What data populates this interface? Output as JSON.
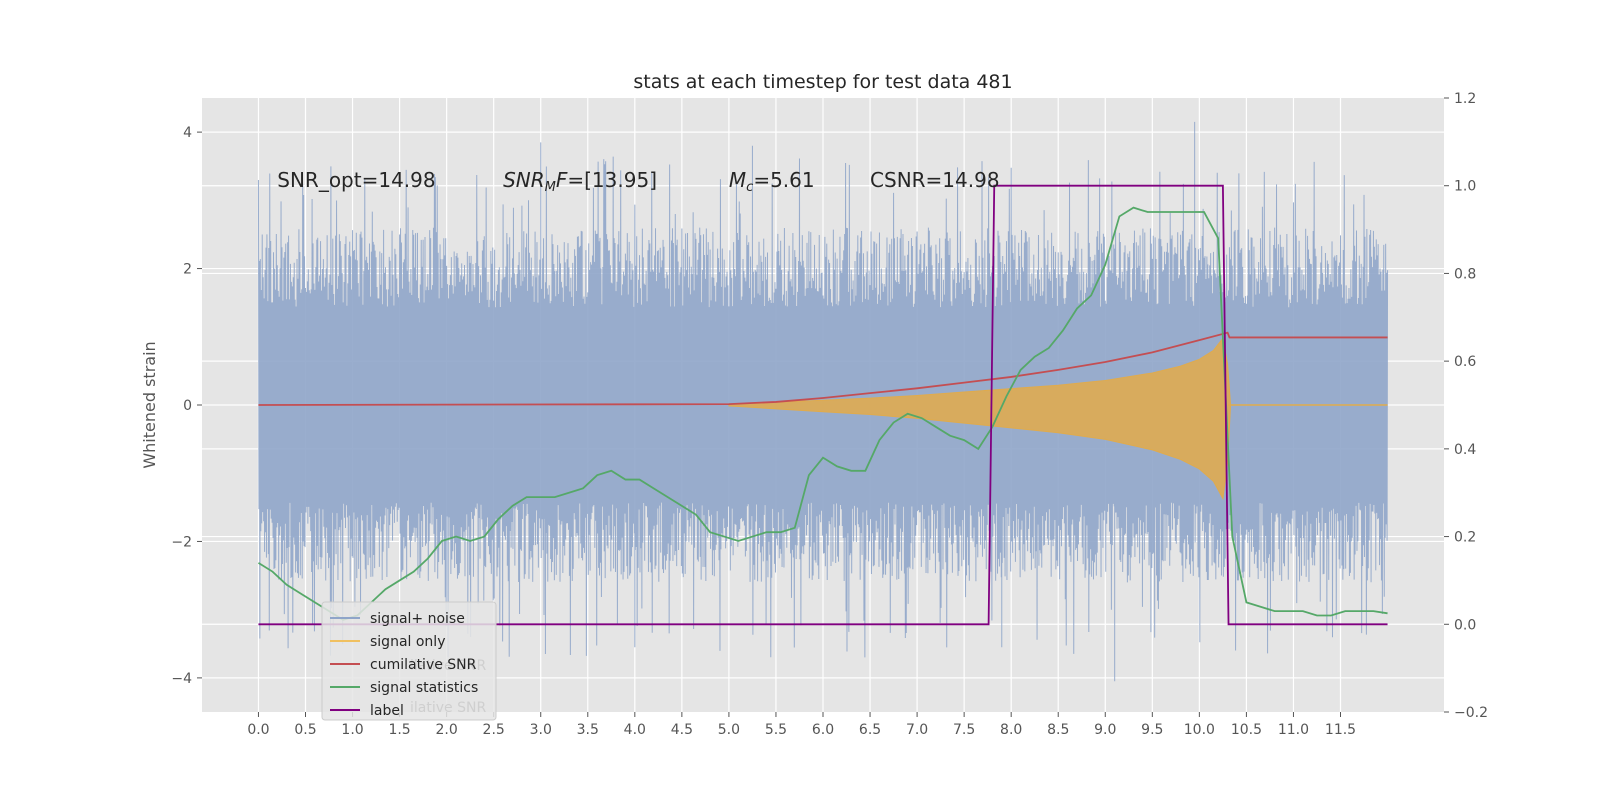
{
  "chart_data": {
    "type": "line",
    "title": "stats at each timestep for test data 481",
    "xlabel": "",
    "ylabel": "Whitened strain",
    "xlim": [
      -0.6,
      12.6
    ],
    "ylim": [
      -4.5,
      4.5
    ],
    "y2lim": [
      -0.2,
      1.2
    ],
    "x_ticks": [
      0.0,
      0.5,
      1.0,
      1.5,
      2.0,
      2.5,
      3.0,
      3.5,
      4.0,
      4.5,
      5.0,
      5.5,
      6.0,
      6.5,
      7.0,
      7.5,
      8.0,
      8.5,
      9.0,
      9.5,
      10.0,
      10.5,
      11.0,
      11.5
    ],
    "x_tick_labels": [
      "0.0",
      "0.5",
      "1.0",
      "1.5",
      "2.0",
      "2.5",
      "3.0",
      "3.5",
      "4.0",
      "4.5",
      "5.0",
      "5.5",
      "6.0",
      "6.5",
      "7.0",
      "7.5",
      "8.0",
      "8.5",
      "9.0",
      "9.5",
      "10.0",
      "10.5",
      "11.0",
      "11.5"
    ],
    "y_ticks": [
      -4,
      -2,
      0,
      2,
      4
    ],
    "y_tick_labels": [
      "−4",
      "−2",
      "0",
      "2",
      "4"
    ],
    "y2_ticks": [
      -0.2,
      0.0,
      0.2,
      0.4,
      0.6,
      0.8,
      1.0,
      1.2
    ],
    "y2_tick_labels": [
      "−0.2",
      "0.0",
      "0.2",
      "0.4",
      "0.6",
      "0.8",
      "1.0",
      "1.2"
    ],
    "grid": true,
    "legend_position": "lower-left",
    "annotations": [
      {
        "x": 0.2,
        "y": 3.3,
        "parts": [
          {
            "t": "SNR_opt=14.98",
            "style": "normal"
          }
        ]
      },
      {
        "x": 2.6,
        "y": 3.3,
        "parts": [
          {
            "t": "SNR",
            "style": "italic"
          },
          {
            "t": "M",
            "style": "italic-sub"
          },
          {
            "t": "F",
            "style": "italic"
          },
          {
            "t": "=[13.95]",
            "style": "normal"
          }
        ]
      },
      {
        "x": 5.0,
        "y": 3.3,
        "parts": [
          {
            "t": "M",
            "style": "italic"
          },
          {
            "t": "c",
            "style": "italic-sub"
          },
          {
            "t": "=5.61",
            "style": "normal"
          }
        ]
      },
      {
        "x": 6.5,
        "y": 3.3,
        "parts": [
          {
            "t": "CSNR=14.98",
            "style": "normal"
          }
        ]
      }
    ],
    "legend": [
      "signal+ noise",
      "signal only",
      "cumilative SNR",
      "signal statistics",
      "label"
    ],
    "legend_ghost_text": [
      "ilative SNR",
      "ilative SNR"
    ],
    "series": [
      {
        "name": "signal+ noise",
        "axis": "left",
        "color": "#8fa5c9",
        "x_range": [
          0.0,
          12.0
        ],
        "amplitude": 2.6,
        "peaks": [
          {
            "x": 3.0,
            "y": 3.85
          },
          {
            "x": 3.05,
            "y": -3.65
          },
          {
            "x": 5.25,
            "y": 3.8
          },
          {
            "x": 6.0,
            "y": -1.5
          },
          {
            "x": 9.1,
            "y": -4.05
          },
          {
            "x": 9.95,
            "y": 4.15
          },
          {
            "x": 7.9,
            "y": -3.55
          },
          {
            "x": 4.0,
            "y": -3.55
          }
        ]
      },
      {
        "name": "signal only",
        "axis": "left",
        "color": "#e0ab4d",
        "x": [
          5.0,
          5.5,
          6.0,
          6.5,
          7.0,
          7.5,
          8.0,
          8.5,
          9.0,
          9.5,
          9.8,
          10.0,
          10.15,
          10.25,
          10.3,
          10.33
        ],
        "envelope": [
          0.01,
          0.04,
          0.07,
          0.1,
          0.14,
          0.19,
          0.24,
          0.29,
          0.36,
          0.47,
          0.57,
          0.67,
          0.8,
          0.98,
          0.6,
          0.03
        ]
      },
      {
        "name": "cumilative SNR",
        "axis": "right",
        "color": "#c44e52",
        "x": [
          0.0,
          5.0,
          5.5,
          6.0,
          6.5,
          7.0,
          7.5,
          8.0,
          8.5,
          9.0,
          9.5,
          10.0,
          10.3,
          10.32,
          12.0
        ],
        "y": [
          0.5,
          0.502,
          0.507,
          0.516,
          0.527,
          0.538,
          0.551,
          0.564,
          0.58,
          0.598,
          0.62,
          0.648,
          0.665,
          0.654,
          0.654
        ]
      },
      {
        "name": "signal statistics",
        "axis": "right",
        "color": "#55a868",
        "x": [
          0.0,
          0.15,
          0.3,
          0.45,
          0.6,
          0.75,
          0.9,
          1.05,
          1.2,
          1.35,
          1.5,
          1.65,
          1.8,
          1.95,
          2.1,
          2.25,
          2.4,
          2.55,
          2.7,
          2.85,
          3.0,
          3.15,
          3.3,
          3.45,
          3.6,
          3.75,
          3.9,
          4.05,
          4.2,
          4.35,
          4.5,
          4.65,
          4.8,
          4.95,
          5.1,
          5.25,
          5.4,
          5.55,
          5.7,
          5.85,
          6.0,
          6.15,
          6.3,
          6.45,
          6.6,
          6.75,
          6.9,
          7.05,
          7.2,
          7.35,
          7.5,
          7.65,
          7.8,
          7.95,
          8.1,
          8.25,
          8.4,
          8.55,
          8.7,
          8.85,
          9.0,
          9.15,
          9.3,
          9.45,
          9.6,
          9.75,
          9.9,
          10.05,
          10.2,
          10.35,
          10.5,
          10.65,
          10.8,
          10.95,
          11.1,
          11.25,
          11.4,
          11.55,
          11.7,
          11.85,
          12.0
        ],
        "y": [
          0.14,
          0.12,
          0.09,
          0.07,
          0.05,
          0.03,
          0.01,
          0.02,
          0.05,
          0.08,
          0.1,
          0.12,
          0.15,
          0.19,
          0.2,
          0.19,
          0.2,
          0.24,
          0.27,
          0.29,
          0.29,
          0.29,
          0.3,
          0.31,
          0.34,
          0.35,
          0.33,
          0.33,
          0.31,
          0.29,
          0.27,
          0.25,
          0.21,
          0.2,
          0.19,
          0.2,
          0.21,
          0.21,
          0.22,
          0.34,
          0.38,
          0.36,
          0.35,
          0.35,
          0.42,
          0.46,
          0.48,
          0.47,
          0.45,
          0.43,
          0.42,
          0.4,
          0.45,
          0.52,
          0.58,
          0.61,
          0.63,
          0.67,
          0.72,
          0.75,
          0.82,
          0.93,
          0.95,
          0.94,
          0.94,
          0.94,
          0.94,
          0.94,
          0.88,
          0.2,
          0.05,
          0.04,
          0.03,
          0.03,
          0.03,
          0.02,
          0.02,
          0.03,
          0.03,
          0.03,
          0.025
        ]
      },
      {
        "name": "label",
        "axis": "right",
        "color": "#800080",
        "x": [
          0.0,
          7.76,
          7.82,
          10.25,
          10.31,
          12.0
        ],
        "y": [
          0.0,
          0.0,
          1.0,
          1.0,
          0.0,
          0.0
        ]
      }
    ]
  }
}
